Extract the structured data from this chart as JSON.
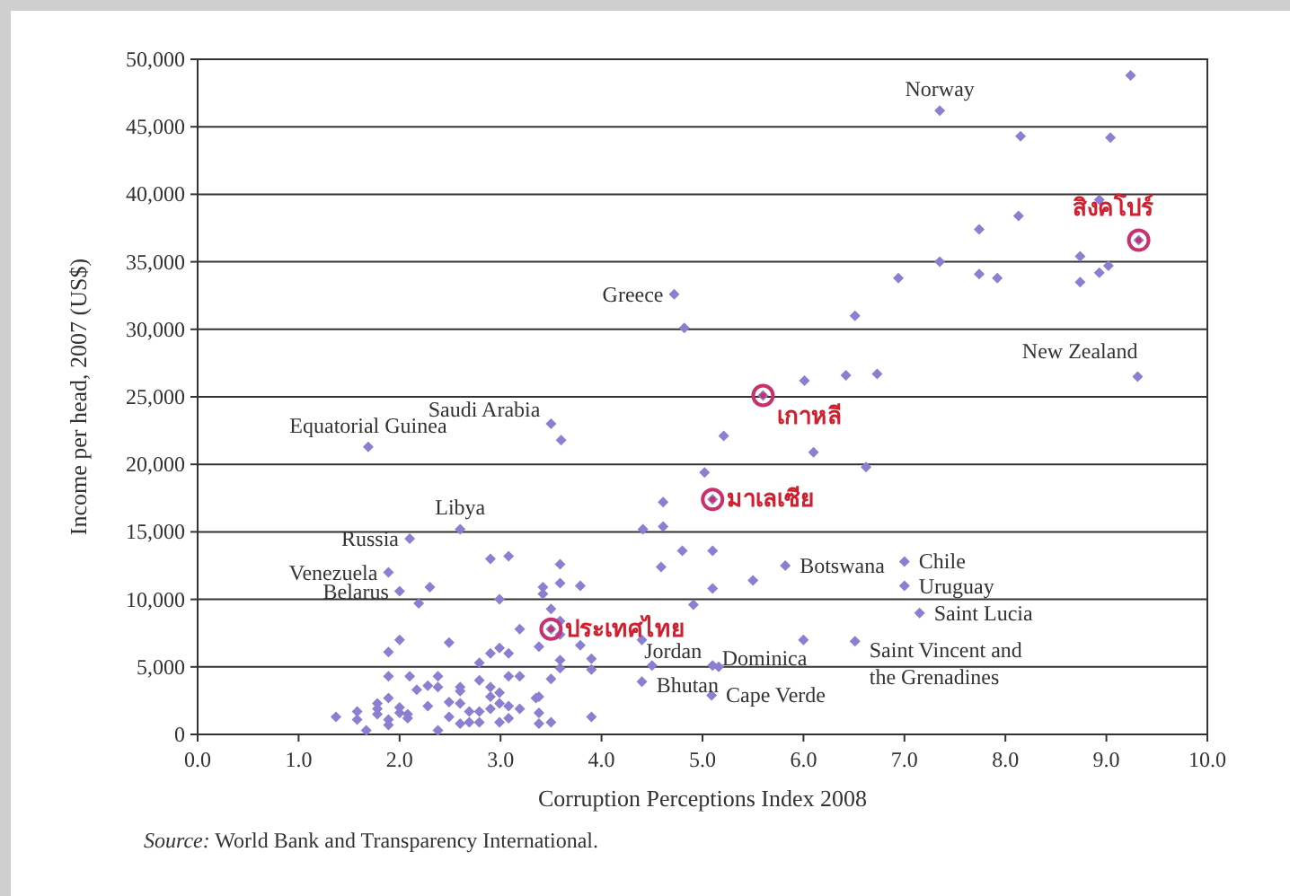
{
  "chart_data": {
    "type": "scatter",
    "xlabel": "Corruption Perceptions Index 2008",
    "ylabel": "Income per head, 2007 (US$)",
    "xlim": [
      0,
      10
    ],
    "ylim": [
      0,
      50000
    ],
    "xticks": [
      {
        "value": 0,
        "label": "0.0"
      },
      {
        "value": 1,
        "label": "1.0"
      },
      {
        "value": 2,
        "label": "2.0"
      },
      {
        "value": 3,
        "label": "3.0"
      },
      {
        "value": 4,
        "label": "4.0"
      },
      {
        "value": 5,
        "label": "5.0"
      },
      {
        "value": 6,
        "label": "6.0"
      },
      {
        "value": 7,
        "label": "7.0"
      },
      {
        "value": 8,
        "label": "8.0"
      },
      {
        "value": 9,
        "label": "9.0"
      },
      {
        "value": 10,
        "label": "10.0"
      }
    ],
    "yticks": [
      0,
      {
        "value": 5000,
        "label": "5,000"
      },
      {
        "value": 10000,
        "label": "10,000"
      },
      {
        "value": 15000,
        "label": "15,000"
      },
      {
        "value": 20000,
        "label": "20,000"
      },
      {
        "value": 25000,
        "label": "25,000"
      },
      {
        "value": 30000,
        "label": "30,000"
      },
      {
        "value": 35000,
        "label": "35,000"
      },
      {
        "value": 40000,
        "label": "40,000"
      },
      {
        "value": 45000,
        "label": "45,000"
      },
      {
        "value": 50000,
        "label": "50,000"
      }
    ],
    "grid": "y",
    "series": [
      {
        "color": "#8a7fd0",
        "marker": "diamond",
        "x": [
          7.35,
          9.24,
          8.15,
          9.04,
          8.93,
          8.13,
          7.74,
          9.32,
          7.35,
          6.94,
          7.74,
          7.92,
          8.74,
          8.74,
          8.93,
          9.02,
          6.51,
          4.72,
          4.82,
          9.31,
          6.01,
          6.42,
          6.73,
          5.6,
          5.21,
          6.1,
          6.62,
          5.02,
          3.5,
          3.6,
          1.69,
          5.1,
          4.61,
          4.61,
          4.41,
          2.6,
          2.1,
          4.8,
          5.1,
          4.59,
          5.82,
          5.5,
          5.1,
          4.91,
          7.0,
          7.0,
          7.15,
          1.89,
          2.0,
          2.3,
          2.19,
          2.9,
          3.08,
          2.99,
          3.19,
          2.0,
          1.89,
          2.49,
          2.79,
          2.9,
          2.99,
          3.08,
          3.59,
          3.59,
          3.79,
          3.42,
          3.42,
          3.5,
          3.59,
          3.5,
          3.59,
          3.38,
          3.79,
          4.4,
          6.0,
          6.51,
          5.1,
          5.16,
          4.5,
          3.59,
          3.59,
          3.9,
          3.9,
          3.5,
          4.4,
          5.09,
          3.38,
          3.38,
          3.38,
          3.5,
          3.9,
          1.89,
          2.1,
          2.38,
          2.17,
          2.28,
          2.38,
          2.6,
          2.6,
          2.79,
          2.9,
          2.9,
          2.99,
          3.08,
          3.19,
          1.37,
          1.58,
          1.58,
          1.78,
          1.78,
          1.78,
          1.67,
          1.89,
          1.89,
          1.89,
          2.0,
          2.0,
          2.08,
          2.08,
          2.28,
          2.38,
          2.49,
          2.49,
          2.6,
          2.6,
          2.69,
          2.69,
          2.79,
          2.79,
          2.9,
          2.99,
          2.99,
          3.08,
          3.08,
          3.19,
          3.35
        ],
        "values": [
          46200,
          48800,
          44300,
          44200,
          39600,
          38400,
          37400,
          36600,
          35000,
          33800,
          34100,
          33800,
          35400,
          33500,
          34200,
          34700,
          31000,
          32600,
          30100,
          26500,
          26200,
          26600,
          26700,
          25100,
          22100,
          20900,
          19800,
          19400,
          23000,
          21800,
          21300,
          17400,
          17200,
          15400,
          15200,
          15200,
          14500,
          13600,
          13600,
          12400,
          12500,
          11400,
          10800,
          9600,
          12800,
          11000,
          9000,
          12000,
          10600,
          10900,
          9700,
          13000,
          13200,
          10000,
          7800,
          7000,
          6100,
          6800,
          5300,
          6000,
          6400,
          6000,
          12600,
          11200,
          11000,
          10900,
          10400,
          9300,
          8400,
          7800,
          7400,
          6500,
          6600,
          7000,
          7000,
          6900,
          5100,
          5000,
          5100,
          5500,
          4900,
          5600,
          4800,
          4100,
          3900,
          2900,
          2800,
          1600,
          800,
          900,
          1300,
          4300,
          4300,
          4300,
          3300,
          3600,
          3500,
          3500,
          3200,
          4000,
          3500,
          2800,
          3100,
          4300,
          4300,
          1300,
          1700,
          1100,
          2300,
          1900,
          1500,
          300,
          2700,
          1100,
          700,
          2000,
          1600,
          1500,
          1200,
          2100,
          300,
          2400,
          1300,
          2300,
          800,
          1700,
          900,
          1700,
          900,
          1900,
          2300,
          900,
          2100,
          1200,
          1900,
          2700
        ]
      },
      {
        "type": "scatter",
        "color": "#c8306e",
        "marker": "circle",
        "x": [
          9.32,
          5.6,
          5.1,
          3.5
        ],
        "values": [
          36600,
          25100,
          17400,
          7800
        ]
      }
    ],
    "annotations": [
      {
        "text": "Norway",
        "x": 7.35,
        "y": 46200
      },
      {
        "text": "Greece",
        "x": 4.72,
        "y": 32600
      },
      {
        "text": "Saudi Arabia",
        "x": 3.5,
        "y": 23000
      },
      {
        "text": "Equatorial Guinea",
        "x": 1.69,
        "y": 21300
      },
      {
        "text": "Libya",
        "x": 2.6,
        "y": 15200
      },
      {
        "text": "Russia",
        "x": 2.1,
        "y": 14500
      },
      {
        "text": "Venezuela",
        "x": 1.89,
        "y": 12000
      },
      {
        "text": "Belarus",
        "x": 2.0,
        "y": 10600
      },
      {
        "text": "สิงคโปร์",
        "x": 9.32,
        "y": 36600
      },
      {
        "text": "New Zealand",
        "x": 9.31,
        "y": 26500
      },
      {
        "text": "เกาหลี",
        "x": 5.6,
        "y": 25100
      },
      {
        "text": "มาเลเซีย",
        "x": 5.1,
        "y": 17400
      },
      {
        "text": "ประเทศไทย",
        "x": 3.5,
        "y": 7800
      },
      {
        "text": "Botswana",
        "x": 5.82,
        "y": 12500
      },
      {
        "text": "Chile",
        "x": 7.0,
        "y": 12800
      },
      {
        "text": "Uruguay",
        "x": 7.0,
        "y": 11000
      },
      {
        "text": "Saint Lucia",
        "x": 7.15,
        "y": 9000
      },
      {
        "text": "Jordan",
        "x": 5.1,
        "y": 5100
      },
      {
        "text": "Bhutan",
        "x": 5.16,
        "y": 5000
      },
      {
        "text": "Cape Verde",
        "x": 5.09,
        "y": 2900
      },
      {
        "text": "Dominica",
        "x": 6.0,
        "y": 7000
      },
      {
        "text": "Saint Vincent and the Grenadines",
        "x": 6.51,
        "y": 6900
      },
      "Source: World Bank and Transparency International."
    ]
  }
}
